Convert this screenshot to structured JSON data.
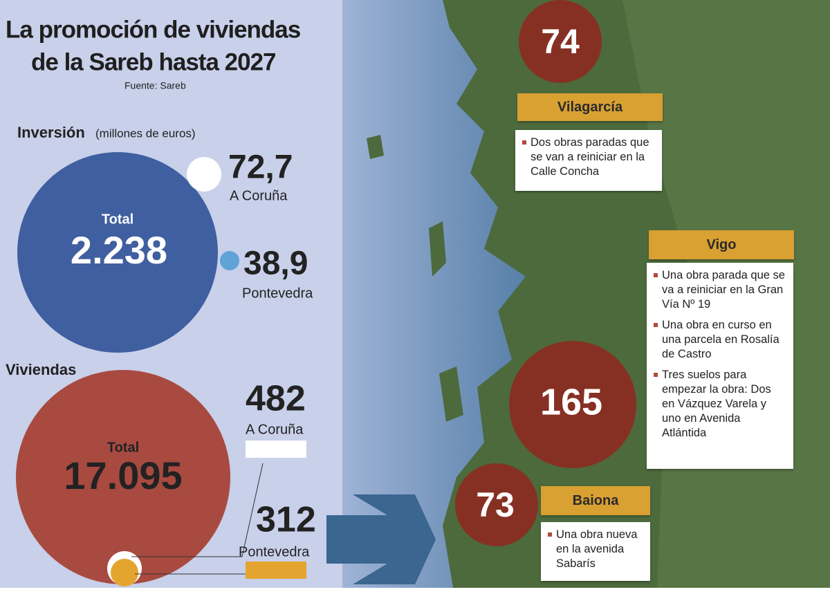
{
  "header": {
    "title_lines": [
      "La promoción de viviendas",
      "de la Sareb hasta 2027"
    ],
    "source": "Fuente: Sareb"
  },
  "investment": {
    "heading": "Inversión",
    "unit": "(millones de euros)",
    "total_label": "Total",
    "total": "2.238",
    "items": [
      {
        "value": "72,7",
        "place": "A Coruña"
      },
      {
        "value": "38,9",
        "place": "Pontevedra"
      }
    ]
  },
  "housing": {
    "heading": "Viviendas",
    "total_label": "Total",
    "total": "17.095",
    "items": [
      {
        "value": "482",
        "place": "A Coruña"
      },
      {
        "value": "312",
        "place": "Pontevedra"
      }
    ]
  },
  "sites": [
    {
      "name": "Vilagarcía",
      "count": "74",
      "items": [
        "Dos obras paradas que se van a reiniciar en la Calle Concha"
      ]
    },
    {
      "name": "Vigo",
      "count": "165",
      "items": [
        "Una obra parada que se va a reiniciar en la Gran Vía Nº 19",
        "Una obra en curso en una parcela en Rosalía de Castro",
        "Tres suelos para empezar la obra: Dos en Vázquez Varela y uno en Avenida Atlántida"
      ]
    },
    {
      "name": "Baiona",
      "count": "73",
      "items": [
        "Una obra nueva en la avenida Sabarís"
      ]
    }
  ]
}
